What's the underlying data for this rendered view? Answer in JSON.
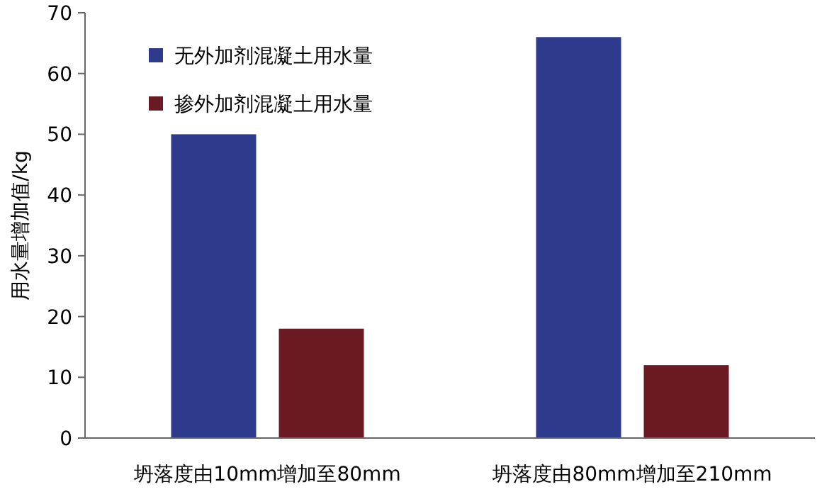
{
  "chart_data": {
    "type": "bar",
    "ylabel": "用水量增加值/kg",
    "categories": [
      "坍落度由10mm增加至80mm",
      "坍落度由80mm增加至210mm"
    ],
    "series": [
      {
        "name": "无外加剂混凝土用水量",
        "color": "#2e3a8c",
        "values": [
          50,
          66
        ]
      },
      {
        "name": "掺外加剂混凝土用水量",
        "color": "#6b1a24",
        "values": [
          18,
          12
        ]
      }
    ],
    "ylim": [
      0,
      70
    ],
    "yticks": [
      0,
      10,
      20,
      30,
      40,
      50,
      60,
      70
    ],
    "legend": "top left",
    "grid": false
  }
}
